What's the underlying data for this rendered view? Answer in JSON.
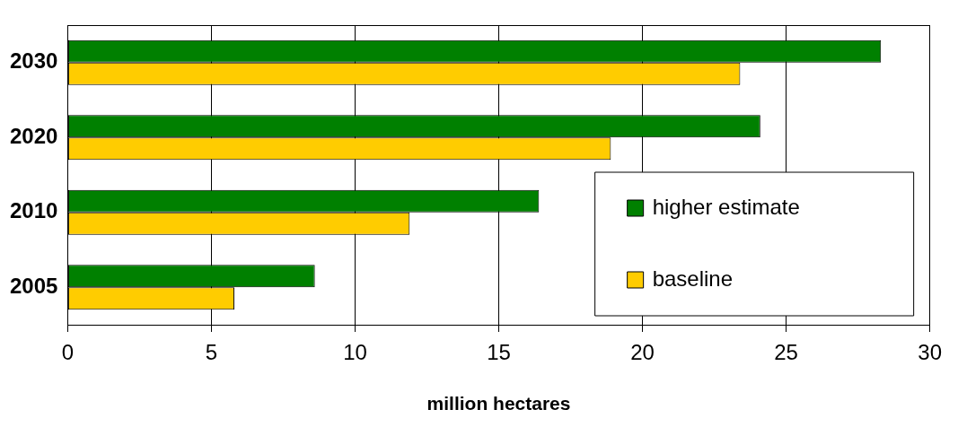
{
  "chart_data": {
    "type": "bar",
    "orientation": "horizontal",
    "xlabel": "million hectares",
    "categories": [
      "2030",
      "2020",
      "2010",
      "2005"
    ],
    "series": [
      {
        "name": "higher estimate",
        "color": "#008000",
        "values": [
          28.3,
          24.1,
          16.4,
          8.6
        ]
      },
      {
        "name": "baseline",
        "color": "#ffcc00",
        "values": [
          23.4,
          18.9,
          11.9,
          5.8
        ]
      }
    ],
    "xlim": [
      0,
      30
    ],
    "xticks": [
      0,
      5,
      10,
      15,
      20,
      25,
      30
    ],
    "grid": "x",
    "legend": "bottom right"
  }
}
